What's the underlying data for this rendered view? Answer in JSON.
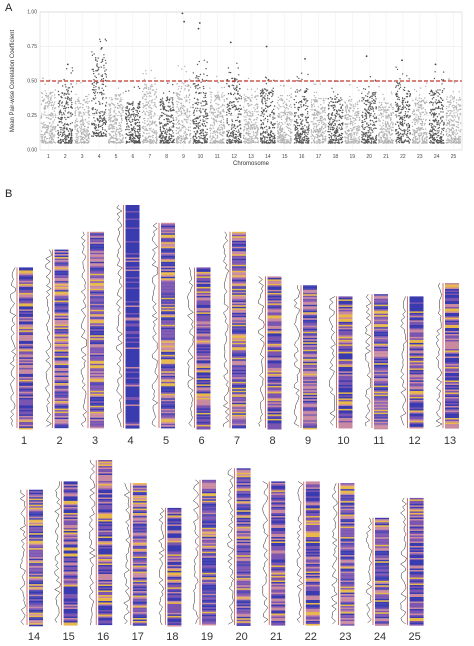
{
  "panel_labels": {
    "a": "A",
    "b": "B"
  },
  "chart_data": [
    {
      "panel": "A",
      "type": "scatter",
      "title": "",
      "xlabel": "Chromosome",
      "ylabel": "Mean Pair-wise Correlation Coefficient",
      "ylim": [
        0,
        1
      ],
      "y_ticks": [
        "0.00",
        "0.25",
        "0.50",
        "0.75",
        "1.00"
      ],
      "x_categories": [
        "1",
        "2",
        "3",
        "4",
        "5",
        "6",
        "7",
        "8",
        "9",
        "10",
        "11",
        "12",
        "13",
        "14",
        "15",
        "16",
        "17",
        "18",
        "19",
        "20",
        "21",
        "22",
        "23",
        "24",
        "25"
      ],
      "threshold": 0.5,
      "threshold_color": "#c0392b",
      "grid": true,
      "point_colors": [
        "#b3b3b3",
        "#555555"
      ],
      "typical_band": [
        {
          "chromosome": "1",
          "low": 0.05,
          "high": 0.42
        },
        {
          "chromosome": "2",
          "low": 0.05,
          "high": 0.48
        },
        {
          "chromosome": "3",
          "low": 0.05,
          "high": 0.38
        },
        {
          "chromosome": "4",
          "low": 0.1,
          "high": 0.7
        },
        {
          "chromosome": "5",
          "low": 0.05,
          "high": 0.4
        },
        {
          "chromosome": "6",
          "low": 0.05,
          "high": 0.35
        },
        {
          "chromosome": "7",
          "low": 0.05,
          "high": 0.48
        },
        {
          "chromosome": "8",
          "low": 0.05,
          "high": 0.38
        },
        {
          "chromosome": "9",
          "low": 0.05,
          "high": 0.5
        },
        {
          "chromosome": "10",
          "low": 0.05,
          "high": 0.55
        },
        {
          "chromosome": "11",
          "low": 0.05,
          "high": 0.42
        },
        {
          "chromosome": "12",
          "low": 0.05,
          "high": 0.52
        },
        {
          "chromosome": "13",
          "low": 0.05,
          "high": 0.4
        },
        {
          "chromosome": "14",
          "low": 0.05,
          "high": 0.45
        },
        {
          "chromosome": "15",
          "low": 0.05,
          "high": 0.4
        },
        {
          "chromosome": "16",
          "low": 0.05,
          "high": 0.45
        },
        {
          "chromosome": "17",
          "low": 0.05,
          "high": 0.38
        },
        {
          "chromosome": "18",
          "low": 0.05,
          "high": 0.38
        },
        {
          "chromosome": "19",
          "low": 0.05,
          "high": 0.36
        },
        {
          "chromosome": "20",
          "low": 0.05,
          "high": 0.42
        },
        {
          "chromosome": "21",
          "low": 0.05,
          "high": 0.35
        },
        {
          "chromosome": "22",
          "low": 0.05,
          "high": 0.5
        },
        {
          "chromosome": "23",
          "low": 0.05,
          "high": 0.38
        },
        {
          "chromosome": "24",
          "low": 0.05,
          "high": 0.45
        },
        {
          "chromosome": "25",
          "low": 0.05,
          "high": 0.4
        }
      ],
      "notable_outliers": [
        {
          "chromosome": "2",
          "y": 0.62
        },
        {
          "chromosome": "4",
          "y": 0.74
        },
        {
          "chromosome": "9",
          "y": 0.99
        },
        {
          "chromosome": "9",
          "y": 0.93
        },
        {
          "chromosome": "10",
          "y": 0.92
        },
        {
          "chromosome": "10",
          "y": 0.88
        },
        {
          "chromosome": "12",
          "y": 0.78
        },
        {
          "chromosome": "14",
          "y": 0.75
        },
        {
          "chromosome": "16",
          "y": 0.66
        },
        {
          "chromosome": "20",
          "y": 0.68
        },
        {
          "chromosome": "22",
          "y": 0.65
        },
        {
          "chromosome": "24",
          "y": 0.62
        }
      ]
    },
    {
      "panel": "B",
      "type": "heatmap",
      "rows": [
        {
          "labels": [
            "1",
            "2",
            "3",
            "4",
            "5",
            "6",
            "7",
            "8",
            "9",
            "10",
            "11",
            "12",
            "13"
          ],
          "relative_length": [
            0.72,
            0.8,
            0.88,
            1.0,
            0.92,
            0.72,
            0.88,
            0.68,
            0.64,
            0.59,
            0.6,
            0.59,
            0.65
          ]
        },
        {
          "labels": [
            "14",
            "15",
            "16",
            "17",
            "18",
            "19",
            "20",
            "21",
            "22",
            "23",
            "24",
            "25"
          ],
          "relative_length": [
            0.82,
            0.87,
            1.0,
            0.86,
            0.71,
            0.88,
            0.95,
            0.87,
            0.87,
            0.86,
            0.65,
            0.77
          ]
        }
      ],
      "palette": [
        "#3b3bb0",
        "#7b55b0",
        "#c98aa0",
        "#e8b84a"
      ],
      "enriched_chromosome": "4"
    }
  ]
}
